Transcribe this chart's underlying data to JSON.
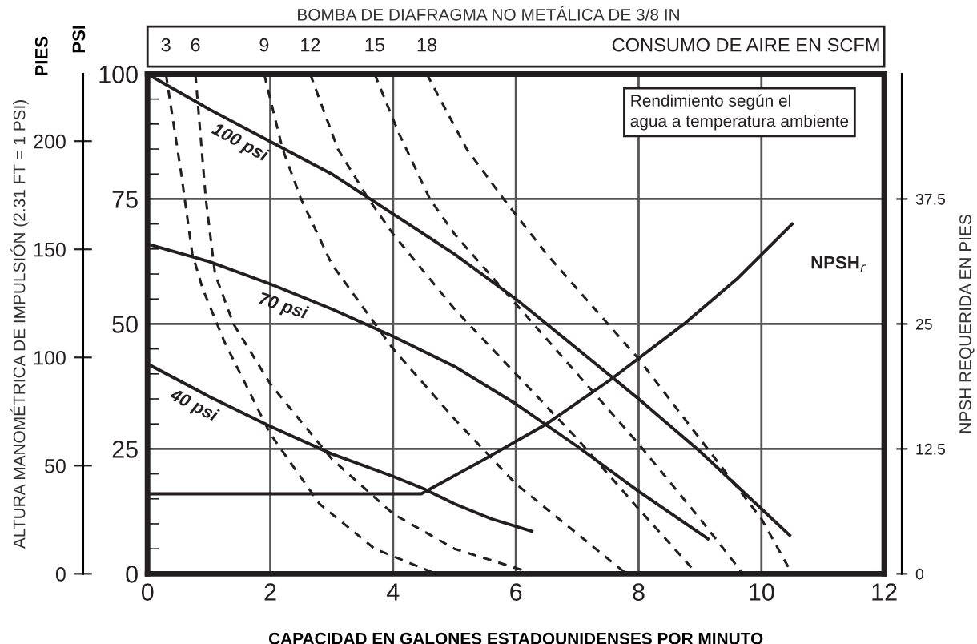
{
  "chart_data": {
    "type": "line",
    "title": "BOMBA DE DIAFRAGMA NO METÁLICA DE 3/8 IN",
    "xlabel": "CAPACIDAD EN GALONES ESTADOUNIDENSES POR MINUTO",
    "ylabel": "PSI",
    "y2label": "NPSH REQUERIDA EN PIES",
    "y3label": "ALTURA MANOMÉTRICA DE IMPULSIÓN (2.31 FT = 1 PSI)",
    "xlim": [
      0,
      12
    ],
    "xticks": [
      0,
      2,
      4,
      6,
      8,
      10,
      12
    ],
    "ylim": [
      0,
      100
    ],
    "yticks": [
      0,
      25,
      50,
      75,
      100
    ],
    "y2lim": [
      0,
      50
    ],
    "y2ticks": [
      0,
      12.5,
      25,
      37.5
    ],
    "y3lim": [
      0,
      231
    ],
    "y3ticks": [
      0,
      50,
      100,
      150,
      200
    ],
    "grid": true,
    "annotations": [
      "PIES",
      "CONSUMO DE AIRE EN SCFM",
      "Rendimiento según el\nagua a temperatura ambiente"
    ],
    "series": [
      {
        "name": "100 psi",
        "color": "#231f20",
        "line_style": "solid",
        "x": [
          0,
          1,
          2,
          3,
          4,
          5,
          6,
          7,
          8,
          9,
          10,
          10.46
        ],
        "values": [
          100,
          93,
          86.5,
          80,
          72,
          64,
          55,
          45,
          35,
          24.5,
          13,
          7.7
        ]
      },
      {
        "name": "70 psi",
        "color": "#231f20",
        "line_style": "solid",
        "x": [
          0,
          1,
          2,
          3,
          4,
          5,
          6,
          7,
          8,
          9.13
        ],
        "values": [
          66,
          62.5,
          58,
          53,
          47.5,
          41.5,
          34,
          25.5,
          16.5,
          7
        ]
      },
      {
        "name": "40 psi",
        "color": "#231f20",
        "line_style": "solid",
        "x": [
          0,
          1,
          2,
          3,
          4,
          4.5,
          5,
          5.6,
          6.26
        ],
        "values": [
          42,
          35.5,
          29.5,
          24,
          19.5,
          17,
          14,
          11,
          8.5
        ]
      },
      {
        "name": "NPSH$_{r}$",
        "color": "#231f20",
        "line_style": "solid",
        "axis": "y2",
        "x": [
          0,
          4.46,
          5.47,
          6.5,
          7.56,
          8.74,
          9.6,
          10.5
        ],
        "values": [
          8,
          8,
          11.4,
          15,
          19.5,
          25,
          29.5,
          35
        ]
      },
      {
        "name": "3",
        "color": "#231f20",
        "line_style": "dashed",
        "x": [
          0.3,
          0.55,
          0.73,
          0.9,
          1.25,
          2,
          2.8,
          3.7,
          4.7
        ],
        "values": [
          100,
          80,
          64,
          57,
          46.5,
          28,
          14,
          5,
          0
        ]
      },
      {
        "name": "6",
        "color": "#231f20",
        "line_style": "dashed",
        "x": [
          0.78,
          0.95,
          1.1,
          1.4,
          2,
          3,
          4,
          5,
          6.3
        ],
        "values": [
          100,
          75,
          60,
          50,
          38,
          23,
          12,
          5,
          0
        ]
      },
      {
        "name": "9",
        "color": "#231f20",
        "line_style": "dashed",
        "x": [
          1.9,
          2.2,
          2.5,
          3,
          4,
          5,
          6,
          7,
          7.8
        ],
        "values": [
          100,
          85,
          75,
          62,
          45,
          31,
          18,
          8,
          0
        ]
      },
      {
        "name": "12",
        "color": "#231f20",
        "line_style": "dashed",
        "x": [
          2.65,
          3.1,
          3.6,
          4,
          5,
          6,
          7,
          8,
          8.95
        ],
        "values": [
          100,
          85,
          75,
          68,
          53,
          40,
          27,
          13,
          0
        ]
      },
      {
        "name": "15",
        "color": "#231f20",
        "line_style": "dashed",
        "x": [
          3.7,
          4.1,
          4.6,
          5,
          6,
          7,
          8,
          9,
          9.7
        ],
        "values": [
          100,
          88,
          75,
          68,
          54,
          40,
          26,
          11,
          0
        ]
      },
      {
        "name": "18",
        "color": "#231f20",
        "line_style": "dashed",
        "x": [
          4.55,
          5.2,
          5.8,
          6.5,
          7,
          8,
          9,
          10,
          10.5
        ],
        "values": [
          100,
          85,
          75,
          64,
          57,
          43,
          27,
          11,
          0
        ]
      }
    ]
  }
}
